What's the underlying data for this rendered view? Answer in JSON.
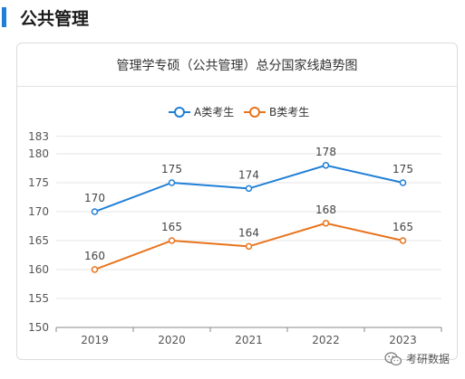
{
  "header": {
    "title": "公共管理"
  },
  "card": {
    "title": "管理学专硕（公共管理）总分国家线趋势图"
  },
  "watermark": {
    "text": "考研数据",
    "icon": "wechat-icon"
  },
  "colors": {
    "accent": "#1f7fd6",
    "seriesA": "#1f7fd6",
    "seriesB": "#e8731c"
  },
  "chart_data": {
    "type": "line",
    "title": "管理学专硕（公共管理）总分国家线趋势图",
    "xlabel": "",
    "ylabel": "",
    "categories": [
      "2019",
      "2020",
      "2021",
      "2022",
      "2023"
    ],
    "series": [
      {
        "name": "A类考生",
        "values": [
          170,
          175,
          174,
          178,
          175
        ]
      },
      {
        "name": "B类考生",
        "values": [
          160,
          165,
          164,
          168,
          165
        ]
      }
    ],
    "ylim": [
      150,
      183
    ],
    "yticks": [
      150,
      155,
      160,
      165,
      170,
      175,
      180,
      183
    ],
    "grid": true,
    "legend": "top-center"
  }
}
